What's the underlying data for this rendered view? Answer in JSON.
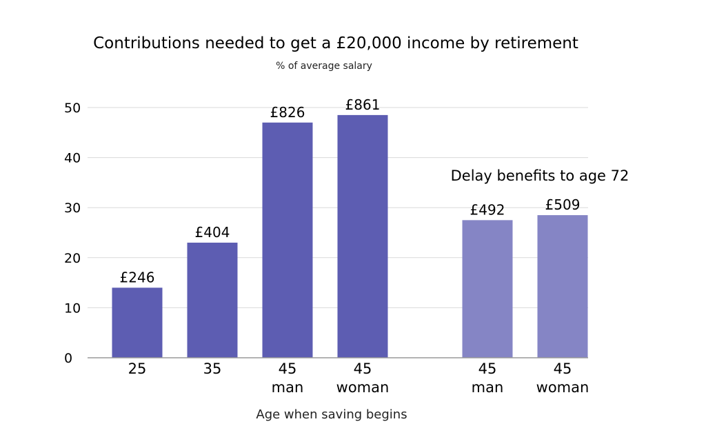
{
  "chart_data": {
    "type": "bar",
    "title": "Contributions needed to get a £20,000 income by retirement",
    "subtitle": "% of average salary",
    "xlabel": "Age when saving begins",
    "ylabel": "",
    "ylim": [
      0,
      50
    ],
    "yticks": [
      0,
      10,
      20,
      30,
      40,
      50
    ],
    "grid": true,
    "annotation": "Delay benefits to age 72",
    "colors": {
      "primary": "#5d5db2",
      "delayed": "#8585c5",
      "grid": "#d9d9d9",
      "axis": "#9a9a9a"
    },
    "bars": [
      {
        "category": [
          "25"
        ],
        "value": 14,
        "label": "£246",
        "group": "primary"
      },
      {
        "category": [
          "35"
        ],
        "value": 23,
        "label": "£404",
        "group": "primary"
      },
      {
        "category": [
          "45",
          "man"
        ],
        "value": 47,
        "label": "£826",
        "group": "primary"
      },
      {
        "category": [
          "45",
          "woman"
        ],
        "value": 48.5,
        "label": "£861",
        "group": "primary"
      },
      {
        "category": [
          "45",
          "man"
        ],
        "value": 27.5,
        "label": "£492",
        "group": "delayed"
      },
      {
        "category": [
          "45",
          "woman"
        ],
        "value": 28.5,
        "label": "£509",
        "group": "delayed"
      }
    ]
  }
}
